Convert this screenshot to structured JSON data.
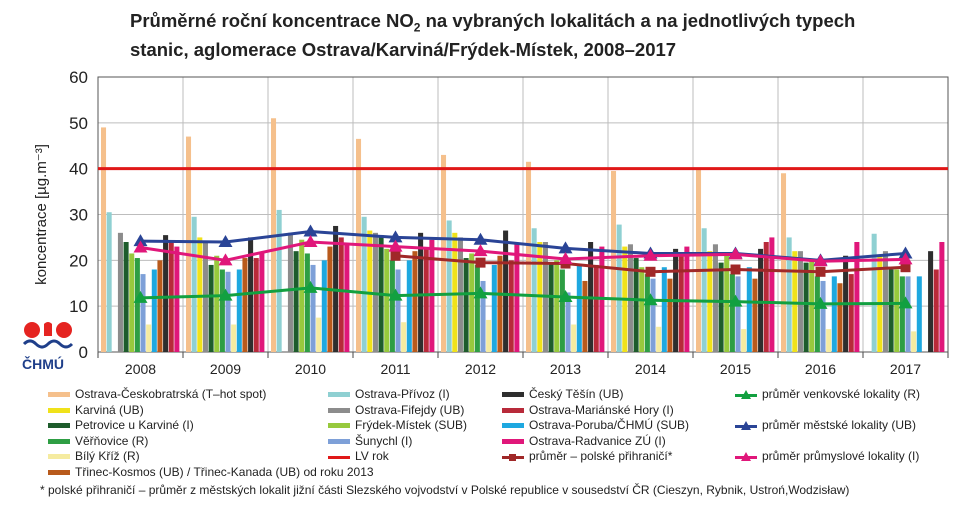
{
  "title": {
    "prefix": "Průměrné roční koncentrace NO",
    "sub": "2",
    "line1_suffix": " na vybraných lokalitách a na jednotlivých typech",
    "line2": "stanic, aglomerace Ostrava/Karviná/Frýdek-Místek, 2008–2017"
  },
  "logo_text": "ČHMÚ",
  "footnote": "* polské přihraničí – průměr z městských lokalit jižní části Slezského vojvodství v Polské republice v sousedství ČR (Cieszyn, Rybnik, Ustroń,Wodzisław)",
  "chart_data": {
    "type": "bar",
    "ylabel": "koncentrace [µg.m⁻³]",
    "ylim": [
      0,
      60
    ],
    "yticks": [
      0,
      10,
      20,
      30,
      40,
      50,
      60
    ],
    "grid": true,
    "categories": [
      "2008",
      "2009",
      "2010",
      "2011",
      "2012",
      "2013",
      "2014",
      "2015",
      "2016",
      "2017"
    ],
    "bar_series": [
      {
        "name": "Ostrava-Českobratrská (T–hot spot)",
        "color": "#f5c08c",
        "values": [
          49,
          47,
          51,
          46.5,
          43,
          41.5,
          39.5,
          40,
          39,
          null
        ]
      },
      {
        "name": "Ostrava-Přívoz (I)",
        "color": "#8fd0d2",
        "values": [
          30.5,
          29.5,
          31,
          29.5,
          28.7,
          27,
          27.8,
          27,
          25,
          25.8
        ]
      },
      {
        "name": "Karviná (UB)",
        "color": "#f0e21a",
        "values": [
          null,
          25,
          null,
          26.5,
          26,
          24,
          23,
          22,
          22,
          21
        ]
      },
      {
        "name": "Ostrava-Fifejdy (UB)",
        "color": "#8c8c8c",
        "values": [
          26,
          24,
          26,
          26,
          25,
          24,
          23.5,
          23.5,
          22,
          22
        ]
      },
      {
        "name": "Petrovice u Karviné (I)",
        "color": "#1e5c2c",
        "values": [
          24,
          19,
          22,
          25.5,
          20.5,
          19.5,
          20.5,
          19.5,
          19.5,
          18
        ]
      },
      {
        "name": "Frýdek-Místek (SUB)",
        "color": "#97c93d",
        "values": [
          21.5,
          21,
          24.5,
          22.5,
          21.5,
          20,
          18.5,
          21,
          20,
          18
        ]
      },
      {
        "name": "Věřňovice (R)",
        "color": "#2e9e44",
        "values": [
          20.5,
          18,
          21.5,
          20,
          19,
          18,
          17,
          17,
          16.5,
          16.5
        ]
      },
      {
        "name": "Šunychl (I)",
        "color": "#7ea0d8",
        "values": [
          17,
          17.5,
          19,
          18,
          15.5,
          13,
          16,
          16.5,
          15.5,
          16.5
        ]
      },
      {
        "name": "Bílý Kříž (R)",
        "color": "#f5eba0",
        "values": [
          6,
          6,
          7.5,
          6.5,
          7,
          6,
          5.5,
          5,
          5,
          4.5
        ]
      },
      {
        "name": "Ostrava-Poruba/ČHMÚ (SUB)",
        "color": "#1ea8e0",
        "values": [
          18,
          18,
          20,
          20,
          19,
          19,
          18.5,
          18.5,
          16.5,
          16.5
        ]
      },
      {
        "name": "Třinec-Kosmos (UB) / Třinec-Kanada (UB) od roku 2013",
        "color": "#b85a1c",
        "values": [
          20,
          20.5,
          23,
          22,
          21,
          15.5,
          16,
          16,
          15,
          null
        ]
      },
      {
        "name": "Český Těšín (UB)",
        "color": "#2e2e2e",
        "values": [
          25.5,
          25,
          27.5,
          26,
          26.5,
          24,
          22.5,
          22.5,
          21,
          22
        ]
      },
      {
        "name": "Ostrava-Mariánské Hory (I)",
        "color": "#b82a3a",
        "values": [
          24,
          20.5,
          25,
          22.5,
          20,
          19,
          21.5,
          24,
          17,
          18
        ]
      },
      {
        "name": "Ostrava-Radvanice ZÚ (I)",
        "color": "#e0177a",
        "values": [
          23,
          21.5,
          23.5,
          24.5,
          23.5,
          23,
          23,
          25,
          24,
          24
        ]
      }
    ],
    "line_series": [
      {
        "name": "průměr – polské přihraničí*",
        "color": "#a02828",
        "marker": "square",
        "values": [
          null,
          null,
          null,
          21,
          19.5,
          19.3,
          17.5,
          18,
          17.5,
          18.5
        ]
      },
      {
        "name": "průměr venkovské lokality (R)",
        "color": "#12a040",
        "marker": "triangle",
        "values": [
          11.8,
          12.3,
          14,
          12.3,
          12.8,
          12,
          11.3,
          11,
          10.5,
          10.6
        ]
      },
      {
        "name": "průměr městské lokality (UB)",
        "color": "#2a4496",
        "marker": "triangle",
        "values": [
          24.2,
          24,
          26.3,
          25,
          24.5,
          22.6,
          21.5,
          21.5,
          20,
          21.5
        ]
      },
      {
        "name": "průměr průmyslové lokality (I)",
        "color": "#e0177a",
        "marker": "triangle",
        "values": [
          22.8,
          20,
          24,
          23,
          22,
          20.3,
          21,
          21.3,
          19.8,
          20.2
        ]
      }
    ],
    "reference_lines": [
      {
        "name": "LV rok",
        "value": 40,
        "color": "#e01818"
      }
    ]
  }
}
